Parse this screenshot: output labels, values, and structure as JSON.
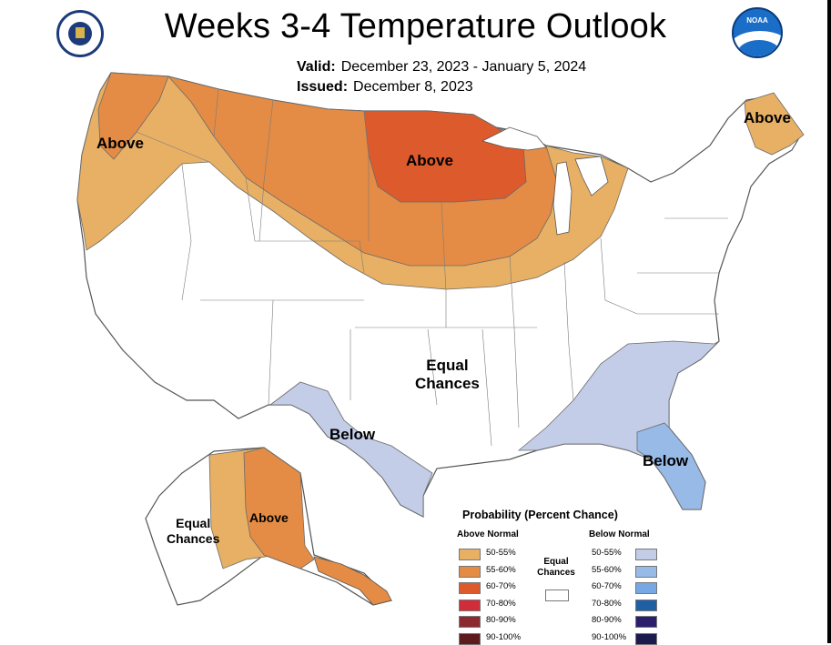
{
  "header": {
    "title": "Weeks 3-4 Temperature Outlook",
    "valid_label": "Valid:",
    "valid_value": "December 23, 2023 - January 5, 2024",
    "issued_label": "Issued:",
    "issued_value": "December 8, 2023"
  },
  "logos": {
    "left": "doc-seal-icon",
    "right": "noaa-logo-icon",
    "noaa_text": "NOAA"
  },
  "regions": {
    "above_northwest": "Above",
    "above_north": "Above",
    "above_maine": "Above",
    "equal_chances_line1": "Equal",
    "equal_chances_line2": "Chances",
    "below_texas": "Below",
    "below_florida": "Below",
    "alaska_equal_line1": "Equal",
    "alaska_equal_line2": "Chances",
    "alaska_above": "Above"
  },
  "legend": {
    "title": "Probability (Percent Chance)",
    "above_header": "Above Normal",
    "below_header": "Below Normal",
    "equal_line1": "Equal",
    "equal_line2": "Chances",
    "above": [
      {
        "label": "50-55%",
        "color": "#e8b064"
      },
      {
        "label": "55-60%",
        "color": "#e48c45"
      },
      {
        "label": "60-70%",
        "color": "#dd5a2d"
      },
      {
        "label": "70-80%",
        "color": "#d12c3a"
      },
      {
        "label": "80-90%",
        "color": "#8c2a30"
      },
      {
        "label": "90-100%",
        "color": "#5e1b1e"
      }
    ],
    "below": [
      {
        "label": "50-55%",
        "color": "#c3cde8"
      },
      {
        "label": "55-60%",
        "color": "#98bae6"
      },
      {
        "label": "60-70%",
        "color": "#76a9e4"
      },
      {
        "label": "70-80%",
        "color": "#1f5fa3"
      },
      {
        "label": "80-90%",
        "color": "#2b1e6d"
      },
      {
        "label": "90-100%",
        "color": "#1d1a4d"
      }
    ]
  }
}
